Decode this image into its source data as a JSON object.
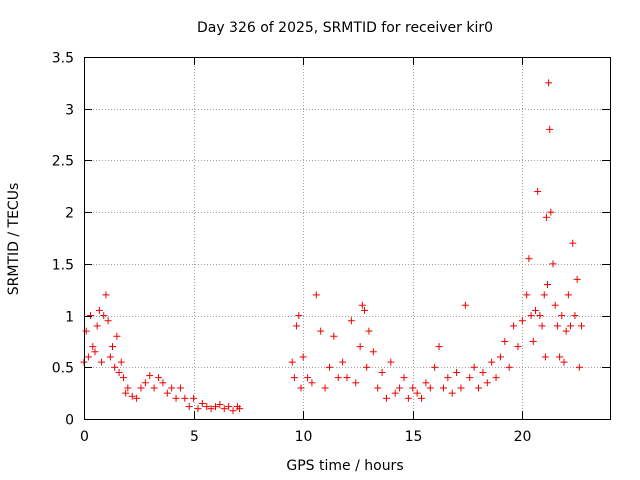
{
  "chart_data": {
    "type": "scatter",
    "title": "Day 326 of 2025, SRMTID for receiver kir0",
    "xlabel": "GPS time / hours",
    "ylabel": "SRMTID / TECUs",
    "xlim": [
      0,
      24
    ],
    "ylim": [
      0,
      3.5
    ],
    "grid": true,
    "marker": "+",
    "color": "#ee0000",
    "xticks": [
      {
        "value": 0,
        "label": "0"
      },
      {
        "value": 5,
        "label": "5"
      },
      {
        "value": 10,
        "label": "10"
      },
      {
        "value": 15,
        "label": "15"
      },
      {
        "value": 20,
        "label": "20"
      }
    ],
    "yticks": [
      {
        "value": 0,
        "label": "0"
      },
      {
        "value": 0.5,
        "label": "0.5"
      },
      {
        "value": 1,
        "label": "1"
      },
      {
        "value": 1.5,
        "label": "1.5"
      },
      {
        "value": 2,
        "label": "2"
      },
      {
        "value": 2.5,
        "label": "2.5"
      },
      {
        "value": 3,
        "label": "3"
      },
      {
        "value": 3.5,
        "label": "3.5"
      }
    ],
    "x": [
      0.0,
      0.1,
      0.2,
      0.3,
      0.4,
      0.5,
      0.6,
      0.7,
      0.8,
      0.9,
      1.0,
      1.1,
      1.2,
      1.3,
      1.4,
      1.5,
      1.6,
      1.7,
      1.8,
      1.9,
      2.0,
      2.2,
      2.4,
      2.6,
      2.8,
      3.0,
      3.2,
      3.4,
      3.6,
      3.8,
      4.0,
      4.2,
      4.4,
      4.6,
      4.8,
      5.0,
      5.2,
      5.4,
      5.6,
      5.8,
      6.0,
      6.2,
      6.4,
      6.6,
      6.8,
      7.0,
      7.1,
      9.5,
      9.6,
      9.7,
      9.8,
      9.9,
      10.0,
      10.2,
      10.4,
      10.6,
      10.8,
      11.0,
      11.2,
      11.4,
      11.6,
      11.8,
      12.0,
      12.2,
      12.4,
      12.6,
      12.7,
      12.8,
      12.9,
      13.0,
      13.2,
      13.4,
      13.6,
      13.8,
      14.0,
      14.2,
      14.4,
      14.6,
      14.8,
      15.0,
      15.2,
      15.4,
      15.6,
      15.8,
      16.0,
      16.2,
      16.4,
      16.6,
      16.8,
      17.0,
      17.2,
      17.4,
      17.6,
      17.8,
      18.0,
      18.2,
      18.4,
      18.6,
      18.8,
      19.0,
      19.2,
      19.4,
      19.6,
      19.8,
      20.0,
      20.2,
      20.3,
      20.4,
      20.5,
      20.6,
      20.7,
      20.8,
      20.9,
      21.0,
      21.05,
      21.1,
      21.15,
      21.2,
      21.25,
      21.3,
      21.4,
      21.5,
      21.6,
      21.7,
      21.8,
      21.9,
      22.0,
      22.1,
      22.2,
      22.3,
      22.4,
      22.5,
      22.6,
      22.7
    ],
    "y": [
      0.55,
      0.85,
      0.6,
      1.0,
      0.7,
      0.65,
      0.9,
      1.05,
      0.55,
      1.0,
      1.2,
      0.95,
      0.6,
      0.7,
      0.5,
      0.8,
      0.45,
      0.55,
      0.4,
      0.25,
      0.3,
      0.22,
      0.2,
      0.3,
      0.35,
      0.42,
      0.3,
      0.4,
      0.35,
      0.25,
      0.3,
      0.2,
      0.3,
      0.2,
      0.12,
      0.2,
      0.1,
      0.15,
      0.12,
      0.1,
      0.12,
      0.14,
      0.1,
      0.12,
      0.08,
      0.12,
      0.1,
      0.55,
      0.4,
      0.9,
      1.0,
      0.3,
      0.6,
      0.4,
      0.35,
      1.2,
      0.85,
      0.3,
      0.5,
      0.8,
      0.4,
      0.55,
      0.4,
      0.95,
      0.35,
      0.7,
      1.1,
      1.05,
      0.5,
      0.85,
      0.65,
      0.3,
      0.45,
      0.2,
      0.55,
      0.25,
      0.3,
      0.4,
      0.2,
      0.3,
      0.25,
      0.2,
      0.35,
      0.3,
      0.5,
      0.7,
      0.3,
      0.4,
      0.25,
      0.45,
      0.3,
      1.1,
      0.4,
      0.5,
      0.3,
      0.45,
      0.35,
      0.55,
      0.4,
      0.6,
      0.75,
      0.5,
      0.9,
      0.7,
      0.95,
      1.2,
      1.55,
      1.0,
      0.75,
      1.05,
      2.2,
      1.0,
      0.9,
      1.2,
      0.6,
      1.95,
      1.3,
      3.25,
      2.8,
      2.0,
      1.5,
      1.1,
      0.9,
      0.6,
      1.0,
      0.55,
      0.85,
      1.2,
      0.9,
      1.7,
      1.0,
      1.35,
      0.5,
      0.9
    ]
  }
}
